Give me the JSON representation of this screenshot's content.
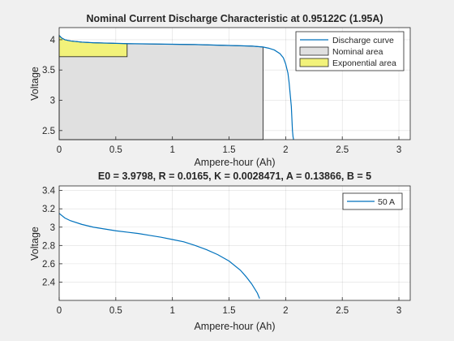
{
  "colors": {
    "curve": "#0072bd",
    "nominal_fill": "#e0e0e0",
    "exponential_fill": "#f2f27a",
    "area_edge": "#262626",
    "figure_bg": "#f0f0f0",
    "axes_bg": "#ffffff"
  },
  "chart_data": [
    {
      "type": "line",
      "title": "Nominal Current Discharge Characteristic at 0.95122C (1.95A)",
      "xlabel": "Ampere-hour (Ah)",
      "ylabel": "Voltage",
      "xlim": [
        0,
        3.1
      ],
      "ylim": [
        2.35,
        4.2
      ],
      "xticks": [
        0,
        0.5,
        1,
        1.5,
        2,
        2.5,
        3
      ],
      "xtick_labels": [
        "0",
        "0.5",
        "1",
        "1.5",
        "2",
        "2.5",
        "3"
      ],
      "yticks": [
        2.5,
        3,
        3.5,
        4
      ],
      "ytick_labels": [
        "2.5",
        "3",
        "3.5",
        "4"
      ],
      "grid": true,
      "legend_position": "top-right",
      "legend": [
        "Discharge curve",
        "Nominal area",
        "Exponential area"
      ],
      "series": [
        {
          "name": "Discharge curve",
          "x": [
            0,
            0.02,
            0.05,
            0.1,
            0.2,
            0.3,
            0.5,
            0.6,
            0.8,
            1.0,
            1.2,
            1.4,
            1.6,
            1.7,
            1.8,
            1.85,
            1.9,
            1.95,
            1.98,
            2.0,
            2.02,
            2.03,
            2.04,
            2.05,
            2.055,
            2.06,
            2.065,
            2.07
          ],
          "y": [
            4.07,
            4.03,
            4.0,
            3.98,
            3.96,
            3.95,
            3.94,
            3.935,
            3.93,
            3.925,
            3.92,
            3.91,
            3.9,
            3.895,
            3.88,
            3.86,
            3.83,
            3.77,
            3.7,
            3.6,
            3.45,
            3.3,
            3.1,
            2.9,
            2.7,
            2.5,
            2.4,
            2.35
          ]
        }
      ],
      "areas": [
        {
          "name": "Nominal area",
          "x": [
            0,
            0.02,
            0.05,
            0.1,
            0.2,
            0.3,
            0.5,
            0.6,
            0.8,
            1.0,
            1.2,
            1.4,
            1.6,
            1.7,
            1.8
          ],
          "y": [
            4.07,
            4.03,
            4.0,
            3.98,
            3.96,
            3.95,
            3.94,
            3.935,
            3.93,
            3.925,
            3.92,
            3.91,
            3.9,
            3.895,
            3.88
          ]
        },
        {
          "name": "Exponential area",
          "x": [
            0,
            0.02,
            0.05,
            0.1,
            0.2,
            0.3,
            0.5,
            0.6
          ],
          "y": [
            4.07,
            4.03,
            4.0,
            3.98,
            3.96,
            3.95,
            3.94,
            3.935
          ],
          "base": 3.72
        }
      ]
    },
    {
      "type": "line",
      "title": "E0 = 3.9798, R = 0.0165, K = 0.0028471, A = 0.13866, B = 5",
      "xlabel": "Ampere-hour (Ah)",
      "ylabel": "Voltage",
      "xlim": [
        0,
        3.1
      ],
      "ylim": [
        2.2,
        3.45
      ],
      "xticks": [
        0,
        0.5,
        1,
        1.5,
        2,
        2.5,
        3
      ],
      "xtick_labels": [
        "0",
        "0.5",
        "1",
        "1.5",
        "2",
        "2.5",
        "3"
      ],
      "yticks": [
        2.4,
        2.6,
        2.8,
        3,
        3.2,
        3.4
      ],
      "ytick_labels": [
        "2.4",
        "2.6",
        "2.8",
        "3",
        "3.2",
        "3.4"
      ],
      "grid": true,
      "legend_position": "top-right",
      "legend": [
        "50 A"
      ],
      "series": [
        {
          "name": "50 A",
          "x": [
            0,
            0.05,
            0.1,
            0.2,
            0.3,
            0.4,
            0.5,
            0.6,
            0.7,
            0.8,
            0.9,
            1.0,
            1.1,
            1.2,
            1.3,
            1.4,
            1.5,
            1.6,
            1.65,
            1.7,
            1.75,
            1.77
          ],
          "y": [
            3.15,
            3.1,
            3.07,
            3.03,
            3.0,
            2.98,
            2.96,
            2.945,
            2.93,
            2.91,
            2.89,
            2.865,
            2.84,
            2.8,
            2.755,
            2.7,
            2.63,
            2.53,
            2.46,
            2.38,
            2.28,
            2.22
          ]
        }
      ]
    }
  ]
}
